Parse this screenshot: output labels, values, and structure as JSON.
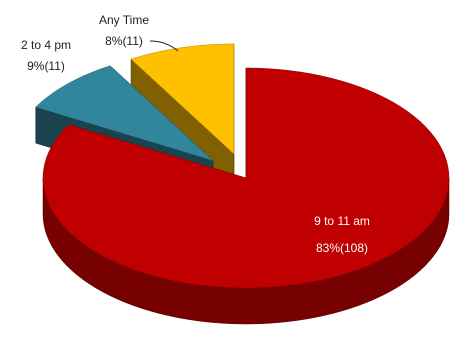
{
  "chart_data": {
    "type": "pie",
    "title": "",
    "legend": "none",
    "categories": [
      "9 to 11 am",
      "2 to 4 pm",
      "Any Time"
    ],
    "series": [
      {
        "values": [
          108,
          11,
          11
        ],
        "percent_labels": [
          "83%(108)",
          "9%(11)",
          "8%(11)"
        ]
      }
    ],
    "colors": [
      "#c00000",
      "#31859c",
      "#ffc000"
    ],
    "exploded": true,
    "three_d": true
  }
}
